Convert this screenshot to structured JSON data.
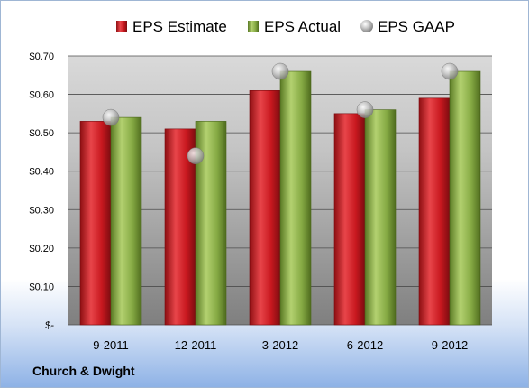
{
  "company_label": "Church & Dwight",
  "chart_data": {
    "type": "bar",
    "categories": [
      "9-2011",
      "12-2011",
      "3-2012",
      "6-2012",
      "9-2012"
    ],
    "series": [
      {
        "name": "EPS Estimate",
        "kind": "bar",
        "color": "#d3242a",
        "values": [
          0.53,
          0.51,
          0.61,
          0.55,
          0.59
        ]
      },
      {
        "name": "EPS Actual",
        "kind": "bar",
        "color": "#8db04a",
        "values": [
          0.54,
          0.53,
          0.66,
          0.56,
          0.66
        ]
      },
      {
        "name": "EPS GAAP",
        "kind": "marker",
        "color": "#b3b3b3",
        "values": [
          0.54,
          0.44,
          0.66,
          0.56,
          0.66
        ]
      }
    ],
    "ylim": [
      0,
      0.7
    ],
    "yticks": [
      {
        "value": 0.0,
        "label": "$-"
      },
      {
        "value": 0.1,
        "label": "$0.10"
      },
      {
        "value": 0.2,
        "label": "$0.20"
      },
      {
        "value": 0.3,
        "label": "$0.30"
      },
      {
        "value": 0.4,
        "label": "$0.40"
      },
      {
        "value": 0.5,
        "label": "$0.50"
      },
      {
        "value": 0.6,
        "label": "$0.60"
      },
      {
        "value": 0.7,
        "label": "$0.70"
      }
    ],
    "grid": true,
    "legend_position": "top"
  }
}
